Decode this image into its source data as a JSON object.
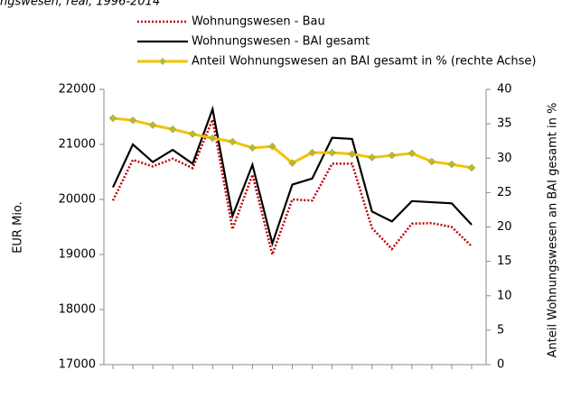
{
  "chart_data": {
    "type": "line",
    "title": "ngswesen, real, 1996-2014",
    "categories": [
      null,
      null,
      null,
      null,
      null,
      null,
      null,
      null,
      null,
      null,
      null,
      null,
      null,
      null,
      null,
      null,
      null,
      null,
      null
    ],
    "series": [
      {
        "name": "Wohnungswesen - Bau",
        "color": "#c00000",
        "dash": true,
        "values": [
          19980,
          20720,
          20600,
          20740,
          20570,
          21450,
          19460,
          20450,
          19000,
          20000,
          19980,
          20650,
          20650,
          19480,
          19100,
          19560,
          19570,
          19500,
          19150
        ]
      },
      {
        "name": "Wohnungswesen - BAI gesamt",
        "color": "#000000",
        "values": [
          20220,
          21000,
          20680,
          20900,
          20650,
          21640,
          19700,
          20630,
          19200,
          20270,
          20380,
          21120,
          21100,
          19780,
          19600,
          19970,
          19950,
          19930,
          19540
        ]
      },
      {
        "name": "Anteil Wohnungswesen an BAI gesamt in %  (rechte Achse)",
        "color": "#f2c200",
        "marker": "diamond",
        "axis": "y2",
        "values": [
          35.8,
          35.5,
          34.8,
          34.2,
          33.5,
          32.9,
          32.4,
          31.5,
          31.7,
          29.3,
          30.8,
          30.8,
          30.6,
          30.1,
          30.4,
          30.7,
          29.5,
          29.1,
          28.6
        ]
      }
    ],
    "ylabel": "EUR Mio.",
    "y2label": "Anteil Wohnungswesen an BAI gesamt in %",
    "ylim": [
      17000,
      22000
    ],
    "yticks": [
      17000,
      18000,
      19000,
      20000,
      21000,
      22000
    ],
    "y2lim": [
      0,
      40
    ],
    "y2ticks": [
      0,
      5,
      10,
      15,
      20,
      25,
      30,
      35,
      40
    ]
  }
}
